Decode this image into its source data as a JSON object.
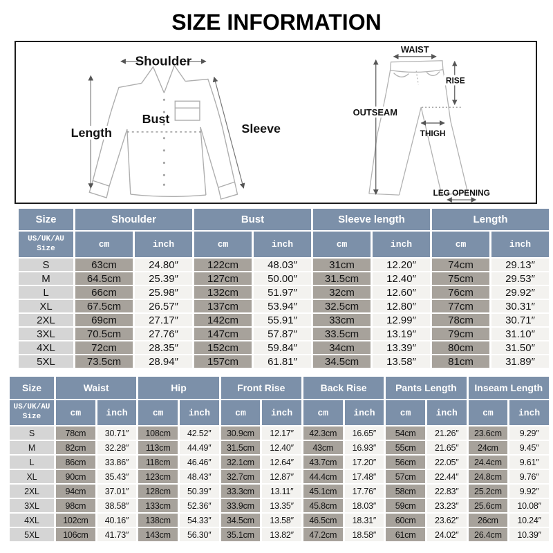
{
  "title": "SIZE INFORMATION",
  "colors": {
    "header_bg": "#7c90a9",
    "size_col_bg": "#d5d5d5",
    "cm_col_bg": "#a7a29b",
    "inch_col_bg": "#f3f2ef",
    "border": "#1c1c1c",
    "text": "#141414",
    "header_text": "#ffffff"
  },
  "diagrams": {
    "shirt": {
      "labels": {
        "shoulder": "Shoulder",
        "length": "Length",
        "bust": "Bust",
        "sleeve": "Sleeve"
      }
    },
    "pants": {
      "labels": {
        "waist": "WAIST",
        "rise": "RISE",
        "outseam": "OUTSEAM",
        "thigh": "THIGH",
        "leg_opening": "LEG OPENING"
      }
    }
  },
  "tables": [
    {
      "id": "tops",
      "groups": [
        "Size",
        "Shoulder",
        "Bust",
        "Sleeve length",
        "Length"
      ],
      "size_header": "US/UK/AU\nSize",
      "unit_headers": [
        "cm",
        "inch"
      ],
      "rows": [
        [
          "S",
          "63cm",
          "24.80″",
          "122cm",
          "48.03″",
          "31cm",
          "12.20″",
          "74cm",
          "29.13″"
        ],
        [
          "M",
          "64.5cm",
          "25.39″",
          "127cm",
          "50.00″",
          "31.5cm",
          "12.40″",
          "75cm",
          "29.53″"
        ],
        [
          "L",
          "66cm",
          "25.98″",
          "132cm",
          "51.97″",
          "32cm",
          "12.60″",
          "76cm",
          "29.92″"
        ],
        [
          "XL",
          "67.5cm",
          "26.57″",
          "137cm",
          "53.94″",
          "32.5cm",
          "12.80″",
          "77cm",
          "30.31″"
        ],
        [
          "2XL",
          "69cm",
          "27.17″",
          "142cm",
          "55.91″",
          "33cm",
          "12.99″",
          "78cm",
          "30.71″"
        ],
        [
          "3XL",
          "70.5cm",
          "27.76″",
          "147cm",
          "57.87″",
          "33.5cm",
          "13.19″",
          "79cm",
          "31.10″"
        ],
        [
          "4XL",
          "72cm",
          "28.35″",
          "152cm",
          "59.84″",
          "34cm",
          "13.39″",
          "80cm",
          "31.50″"
        ],
        [
          "5XL",
          "73.5cm",
          "28.94″",
          "157cm",
          "61.81″",
          "34.5cm",
          "13.58″",
          "81cm",
          "31.89″"
        ]
      ]
    },
    {
      "id": "bottoms",
      "groups": [
        "Size",
        "Waist",
        "Hip",
        "Front Rise",
        "Back Rise",
        "Pants Length",
        "Inseam Length"
      ],
      "size_header": "US/UK/AU\nSize",
      "unit_headers": [
        "cm",
        "inch"
      ],
      "rows": [
        [
          "S",
          "78cm",
          "30.71″",
          "108cm",
          "42.52″",
          "30.9cm",
          "12.17″",
          "42.3cm",
          "16.65″",
          "54cm",
          "21.26″",
          "23.6cm",
          "9.29″"
        ],
        [
          "M",
          "82cm",
          "32.28″",
          "113cm",
          "44.49″",
          "31.5cm",
          "12.40″",
          "43cm",
          "16.93″",
          "55cm",
          "21.65″",
          "24cm",
          "9.45″"
        ],
        [
          "L",
          "86cm",
          "33.86″",
          "118cm",
          "46.46″",
          "32.1cm",
          "12.64″",
          "43.7cm",
          "17.20″",
          "56cm",
          "22.05″",
          "24.4cm",
          "9.61″"
        ],
        [
          "XL",
          "90cm",
          "35.43″",
          "123cm",
          "48.43″",
          "32.7cm",
          "12.87″",
          "44.4cm",
          "17.48″",
          "57cm",
          "22.44″",
          "24.8cm",
          "9.76″"
        ],
        [
          "2XL",
          "94cm",
          "37.01″",
          "128cm",
          "50.39″",
          "33.3cm",
          "13.11″",
          "45.1cm",
          "17.76″",
          "58cm",
          "22.83″",
          "25.2cm",
          "9.92″"
        ],
        [
          "3XL",
          "98cm",
          "38.58″",
          "133cm",
          "52.36″",
          "33.9cm",
          "13.35″",
          "45.8cm",
          "18.03″",
          "59cm",
          "23.23″",
          "25.6cm",
          "10.08″"
        ],
        [
          "4XL",
          "102cm",
          "40.16″",
          "138cm",
          "54.33″",
          "34.5cm",
          "13.58″",
          "46.5cm",
          "18.31″",
          "60cm",
          "23.62″",
          "26cm",
          "10.24″"
        ],
        [
          "5XL",
          "106cm",
          "41.73″",
          "143cm",
          "56.30″",
          "35.1cm",
          "13.82″",
          "47.2cm",
          "18.58″",
          "61cm",
          "24.02″",
          "26.4cm",
          "10.39″"
        ]
      ]
    }
  ]
}
